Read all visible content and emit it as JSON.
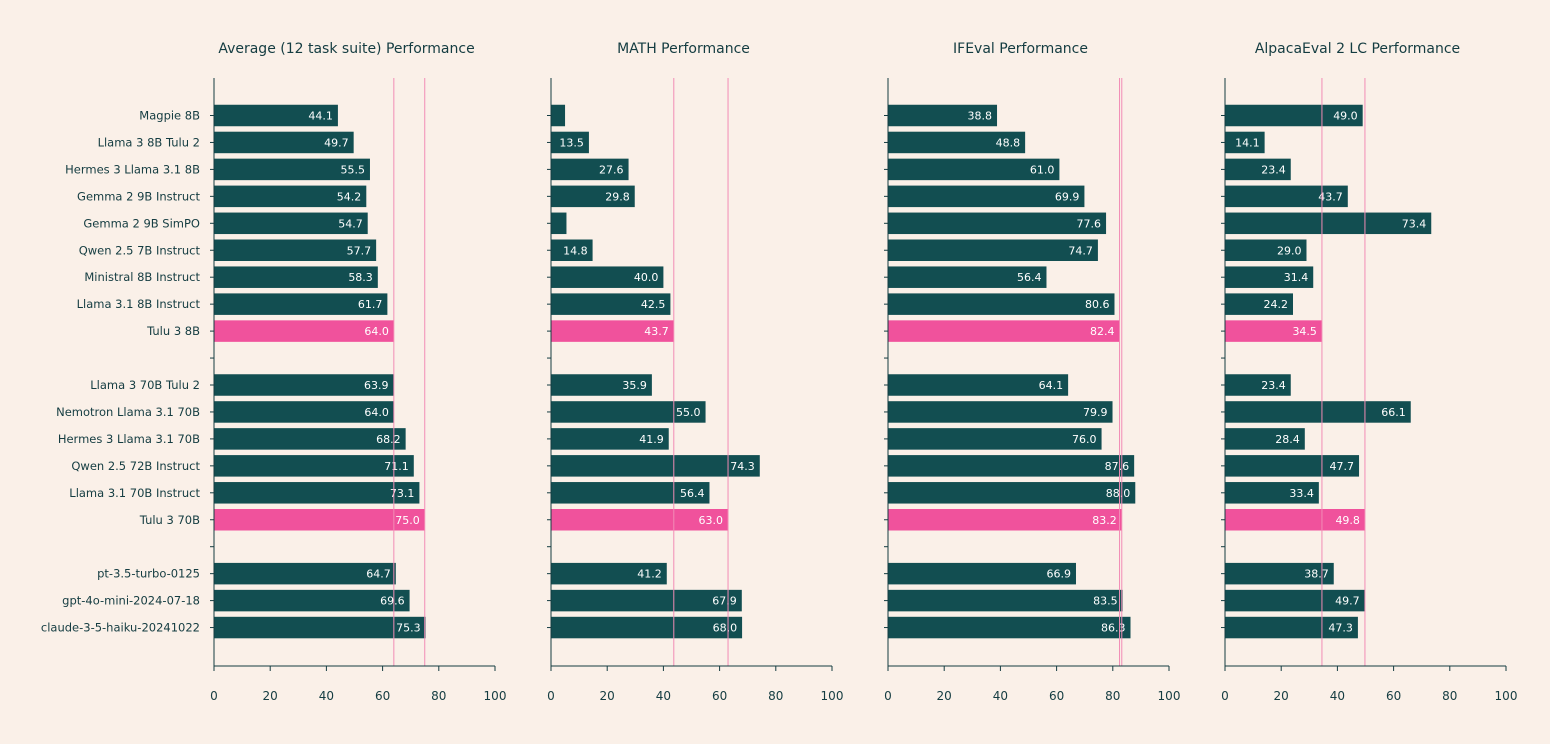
{
  "chart_data": {
    "type": "bar",
    "orientation": "horizontal",
    "colors": {
      "background": "#faf0e8",
      "bar": "#124e51",
      "highlight": "#f0529c",
      "reference_line": "#f28cb5",
      "axis": "#143c41",
      "label": "#143c41"
    },
    "categories": [
      "Magpie 8B",
      "Llama 3 8B Tulu 2",
      "Hermes 3 Llama 3.1 8B",
      "Gemma 2 9B Instruct",
      "Gemma 2 9B SimPO",
      "Qwen 2.5 7B Instruct",
      "Ministral 8B Instruct",
      "Llama 3.1 8B Instruct",
      "Tulu 3 8B",
      "",
      "Llama 3 70B Tulu 2",
      "Nemotron Llama 3.1 70B",
      "Hermes 3 Llama 3.1 70B",
      "Qwen 2.5 72B Instruct",
      "Llama 3.1 70B Instruct",
      "Tulu 3 70B",
      "",
      "pt-3.5-turbo-0125",
      "gpt-4o-mini-2024-07-18",
      "claude-3-5-haiku-20241022"
    ],
    "highlighted": [
      "Tulu 3 8B",
      "Tulu 3 70B"
    ],
    "xlim": [
      0,
      100
    ],
    "xticks": [
      0,
      20,
      40,
      60,
      80,
      100
    ],
    "panels": [
      {
        "title": "Average (12 task suite) Performance",
        "values": [
          44.1,
          49.7,
          55.5,
          54.2,
          54.7,
          57.7,
          58.3,
          61.7,
          64.0,
          null,
          63.9,
          64.0,
          68.2,
          71.1,
          73.1,
          75.0,
          null,
          64.7,
          69.6,
          75.3
        ],
        "labels": [
          "44.1",
          "49.7",
          "55.5",
          "54.2",
          "54.7",
          "57.7",
          "58.3",
          "61.7",
          "64.0",
          "",
          "63.9",
          "64.0",
          "68.2",
          "71.1",
          "73.1",
          "75.0",
          "",
          "64.7",
          "69.6",
          "75.3"
        ],
        "reference_lines": [
          64.0,
          75.0
        ]
      },
      {
        "title": "MATH Performance",
        "values": [
          5.0,
          13.5,
          27.6,
          29.8,
          5.5,
          14.8,
          40.0,
          42.5,
          43.7,
          null,
          35.9,
          55.0,
          41.9,
          74.3,
          56.4,
          63.0,
          null,
          41.2,
          67.9,
          68.0
        ],
        "labels": [
          "",
          "13.5",
          "27.6",
          "29.8",
          "",
          "14.8",
          "40.0",
          "42.5",
          "43.7",
          "",
          "35.9",
          "55.0",
          "41.9",
          "74.3",
          "56.4",
          "63.0",
          "",
          "41.2",
          "67.9",
          "68.0"
        ],
        "reference_lines": [
          43.7,
          63.0
        ]
      },
      {
        "title": "IFEval Performance",
        "values": [
          38.8,
          48.8,
          61.0,
          69.9,
          77.6,
          74.7,
          56.4,
          80.6,
          82.4,
          null,
          64.1,
          79.9,
          76.0,
          87.6,
          88.0,
          83.2,
          null,
          66.9,
          83.5,
          86.3
        ],
        "labels": [
          "38.8",
          "48.8",
          "61.0",
          "69.9",
          "77.6",
          "74.7",
          "56.4",
          "80.6",
          "82.4",
          "",
          "64.1",
          "79.9",
          "76.0",
          "87.6",
          "88.0",
          "83.2",
          "",
          "66.9",
          "83.5",
          "86.3"
        ],
        "reference_lines": [
          82.4,
          83.2
        ]
      },
      {
        "title": "AlpacaEval 2 LC Performance",
        "values": [
          49.0,
          14.1,
          23.4,
          43.7,
          73.4,
          29.0,
          31.4,
          24.2,
          34.5,
          null,
          23.4,
          66.1,
          28.4,
          47.7,
          33.4,
          49.8,
          null,
          38.7,
          49.7,
          47.3
        ],
        "labels": [
          "49.0",
          "14.1",
          "23.4",
          "43.7",
          "73.4",
          "29.0",
          "31.4",
          "24.2",
          "34.5",
          "",
          "23.4",
          "66.1",
          "28.4",
          "47.7",
          "33.4",
          "49.8",
          "",
          "38.7",
          "49.7",
          "47.3"
        ],
        "reference_lines": [
          34.5,
          49.8
        ]
      }
    ]
  }
}
